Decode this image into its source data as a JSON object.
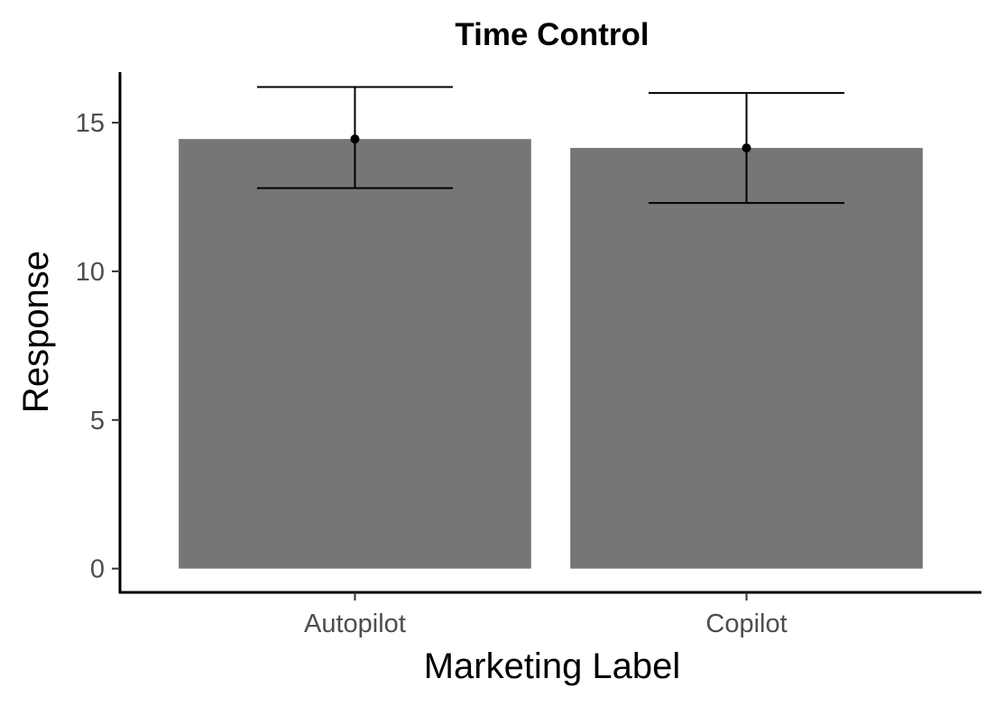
{
  "chart_data": {
    "type": "bar",
    "title": "Time Control",
    "xlabel": "Marketing Label",
    "ylabel": "Response",
    "categories": [
      "Autopilot",
      "Copilot"
    ],
    "values": [
      14.45,
      14.15
    ],
    "error_bars": [
      {
        "lower": 12.8,
        "upper": 16.2
      },
      {
        "lower": 12.3,
        "upper": 16.0
      }
    ],
    "ylim": [
      -0.8,
      16.7
    ],
    "yticks": [
      0,
      5,
      10,
      15
    ],
    "bar_color": "#767676",
    "grid": false,
    "legend": "none"
  }
}
